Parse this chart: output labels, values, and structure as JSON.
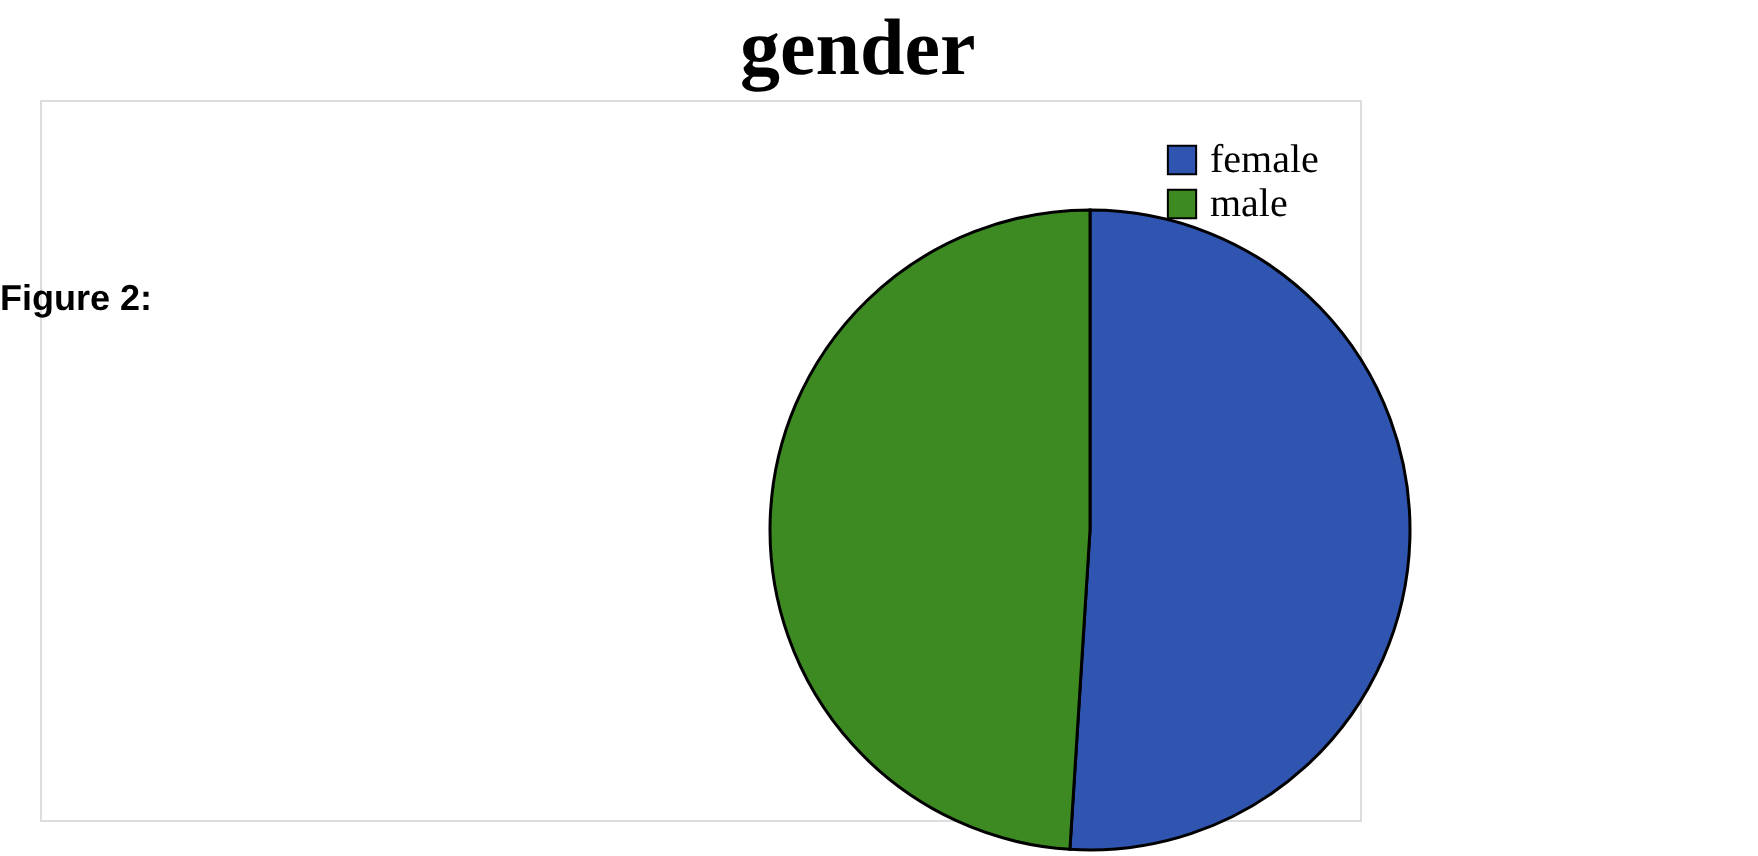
{
  "chart_data": {
    "type": "pie",
    "title": "gender",
    "categories": [
      "female",
      "male"
    ],
    "values": [
      51,
      49
    ],
    "colors": [
      "#2f55b0",
      "#3d8a22"
    ],
    "legend": "top right",
    "annotations": [
      "Figure 2:"
    ]
  }
}
